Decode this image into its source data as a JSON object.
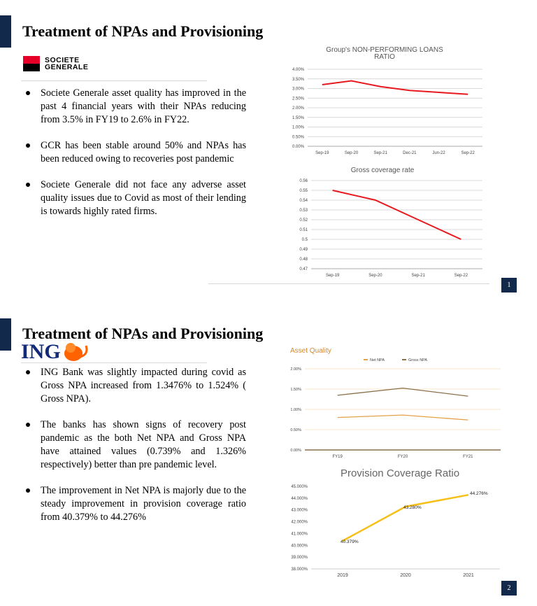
{
  "slide1": {
    "title": "Treatment of NPAs and Provisioning",
    "logo_text": [
      "SOCIETE",
      "GENERALE"
    ],
    "bullets": [
      "Societe Generale asset quality has improved in the past 4 financial years with their NPAs reducing from 3.5% in FY19 to 2.6% in FY22.",
      "GCR has been stable around 50% and NPAs has been reduced owing to recoveries post pandemic",
      "Societe Generale did not face any adverse asset quality issues due to Covid as most of their lending is towards highly rated firms."
    ],
    "page_number": "1"
  },
  "slide2": {
    "title": "Treatment of NPAs and Provisioning",
    "logo_text": "ING",
    "bullets": [
      "ING Bank was slightly impacted during covid as Gross NPA increased from 1.3476% to 1.524% ( Gross NPA).",
      "The banks has shown signs of recovery post pandemic as the both Net NPA and Gross NPA have attained values (0.739% and 1.326% respectively) better than pre pandemic level.",
      "The improvement in Net NPA is majorly due to the steady improvement in provision coverage ratio from 40.379% to 44.276%"
    ],
    "page_number": "2"
  },
  "colors": {
    "navy": "#13294b",
    "sg_red": "#e60028",
    "ing_orange": "#ff6200",
    "ing_blue": "#13297a"
  },
  "chart_data": [
    {
      "type": "line",
      "title": "Group's NON-PERFORMING LOANS RATIO",
      "categories": [
        "Sep-19",
        "Sep-20",
        "Sep-21",
        "Dec-21",
        "Jun-22",
        "Sep-22"
      ],
      "series": [
        {
          "values": [
            3.2,
            3.4,
            3.1,
            2.9,
            2.8,
            2.7
          ],
          "color": "#e8191f"
        }
      ],
      "yticks": [
        "0.00%",
        "0.50%",
        "1.00%",
        "1.50%",
        "2.00%",
        "2.50%",
        "3.00%",
        "3.50%",
        "4.00%"
      ],
      "ylim": [
        0,
        4
      ],
      "grid": true
    },
    {
      "type": "line",
      "title": "Gross coverage rate",
      "categories": [
        "Sep-19",
        "Sep-20",
        "Sep-21",
        "Sep-22"
      ],
      "series": [
        {
          "values": [
            0.55,
            0.54,
            0.52,
            0.5
          ],
          "color": "#e8191f"
        }
      ],
      "yticks": [
        "0.47",
        "0.48",
        "0.49",
        "0.5",
        "0.51",
        "0.52",
        "0.53",
        "0.54",
        "0.55",
        "0.56"
      ],
      "ylim": [
        0.47,
        0.56
      ],
      "grid": true
    },
    {
      "type": "line",
      "title": "Asset Quality",
      "categories": [
        "FY19",
        "FY20",
        "FY21"
      ],
      "series": [
        {
          "name": "Net NPA",
          "values": [
            0.8,
            0.86,
            0.739
          ],
          "color": "#e3a24a"
        },
        {
          "name": "Gross NPA",
          "values": [
            1.3476,
            1.524,
            1.326
          ],
          "color": "#8a7048"
        }
      ],
      "yticks": [
        "0.00%",
        "0.50%",
        "1.00%",
        "1.50%",
        "2.00%"
      ],
      "ylim": [
        0,
        2
      ],
      "grid": true,
      "legend": "top"
    },
    {
      "type": "line",
      "title": "Provision Coverage Ratio",
      "categories": [
        "2019",
        "2020",
        "2021"
      ],
      "series": [
        {
          "values": [
            40.379,
            43.28,
            44.276
          ],
          "color": "#f5c01a",
          "labels": [
            "40.379%",
            "43.280%",
            "44.276%"
          ]
        }
      ],
      "yticks": [
        "38.000%",
        "39.000%",
        "40.000%",
        "41.000%",
        "42.000%",
        "43.000%",
        "44.000%",
        "45.000%"
      ],
      "ylim": [
        38,
        45
      ],
      "grid": false
    }
  ]
}
